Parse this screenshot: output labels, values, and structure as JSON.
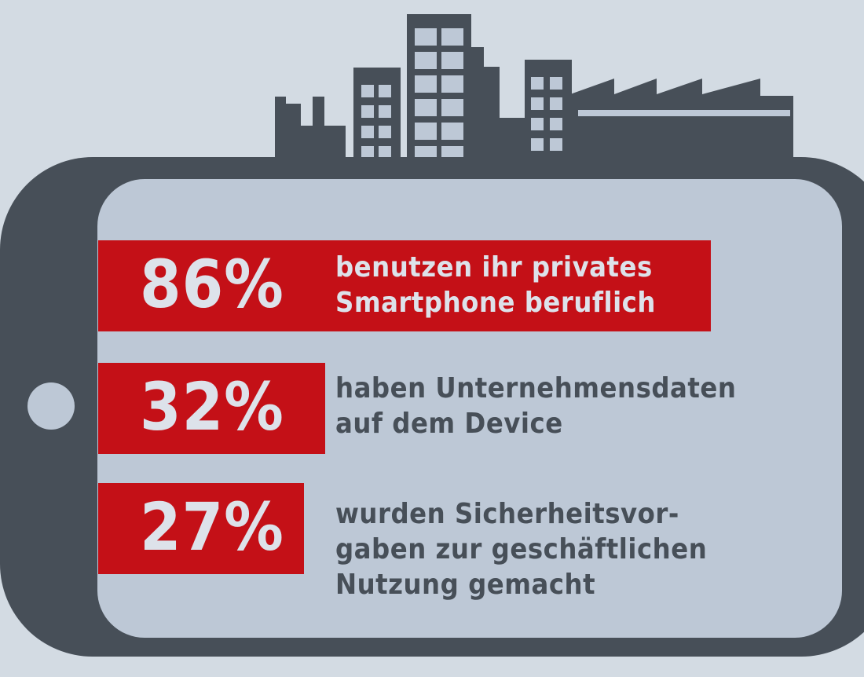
{
  "chart_data": {
    "type": "bar",
    "unit": "%",
    "categories": [
      "benutzen ihr privates Smartphone beruflich",
      "haben Unternehmensdaten auf dem Device",
      "wurden Sicherheitsvorgaben zur geschäftlichen Nutzung gemacht"
    ],
    "values": [
      86,
      32,
      27
    ],
    "items": [
      {
        "value_label": "86%",
        "lines": [
          "benutzen ihr privates",
          "Smartphone beruflich"
        ]
      },
      {
        "value_label": "32%",
        "lines": [
          "haben Unternehmensdaten",
          "auf dem Device"
        ]
      },
      {
        "value_label": "27%",
        "lines": [
          "wurden Sicherheitsvor-",
          "gaben zur geschäftlichen",
          "Nutzung gemacht"
        ]
      }
    ]
  },
  "colors": {
    "background": "#d3dbe3",
    "phone_body": "#474f58",
    "screen": "#bdc8d6",
    "bar": "#c41017",
    "text_light": "#dde2ea",
    "text_dark": "#474f58"
  },
  "icons": [
    "city-skyline-icon",
    "smartphone-icon",
    "home-button-icon"
  ]
}
